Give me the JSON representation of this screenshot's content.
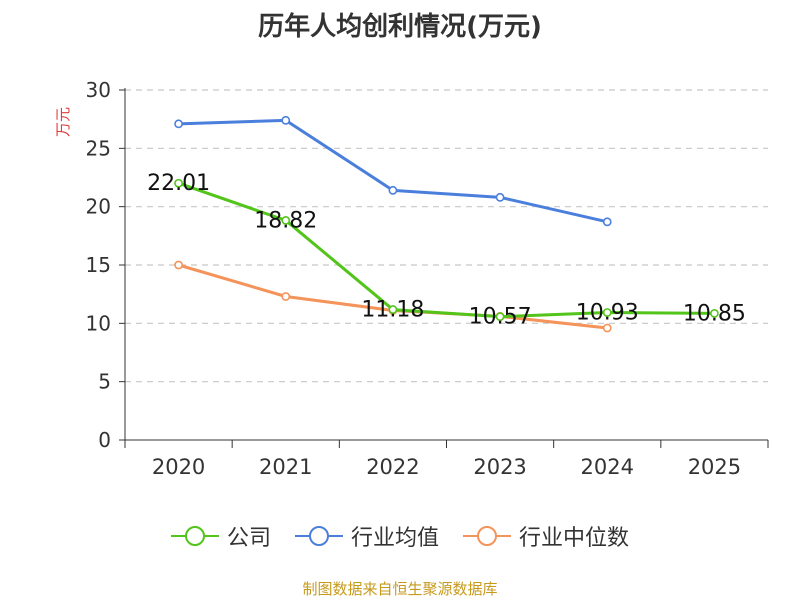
{
  "chart_data": {
    "type": "line",
    "title": "历年人均创利情况(万元)",
    "ylabel": "万元",
    "xlabel": "",
    "categories": [
      "2020",
      "2021",
      "2022",
      "2023",
      "2024",
      "2025"
    ],
    "ylim": [
      0,
      30
    ],
    "yticks": [
      "0",
      "5",
      "10",
      "15",
      "20",
      "25",
      "30"
    ],
    "grid": true,
    "legend_position": "bottom",
    "series": [
      {
        "name": "公司",
        "color": "#52c41a",
        "values": [
          22.01,
          18.82,
          11.18,
          10.57,
          10.93,
          10.85
        ],
        "labels": [
          "22.01",
          "18.82",
          "11.18",
          "10.57",
          "10.93",
          "10.85"
        ]
      },
      {
        "name": "行业均值",
        "color": "#4a7fdc",
        "values": [
          27.1,
          27.4,
          21.4,
          20.8,
          18.7,
          null
        ]
      },
      {
        "name": "行业中位数",
        "color": "#f4935a",
        "values": [
          15.0,
          12.3,
          11.1,
          10.6,
          9.6,
          null
        ]
      }
    ]
  },
  "source": "制图数据来自恒生聚源数据库"
}
